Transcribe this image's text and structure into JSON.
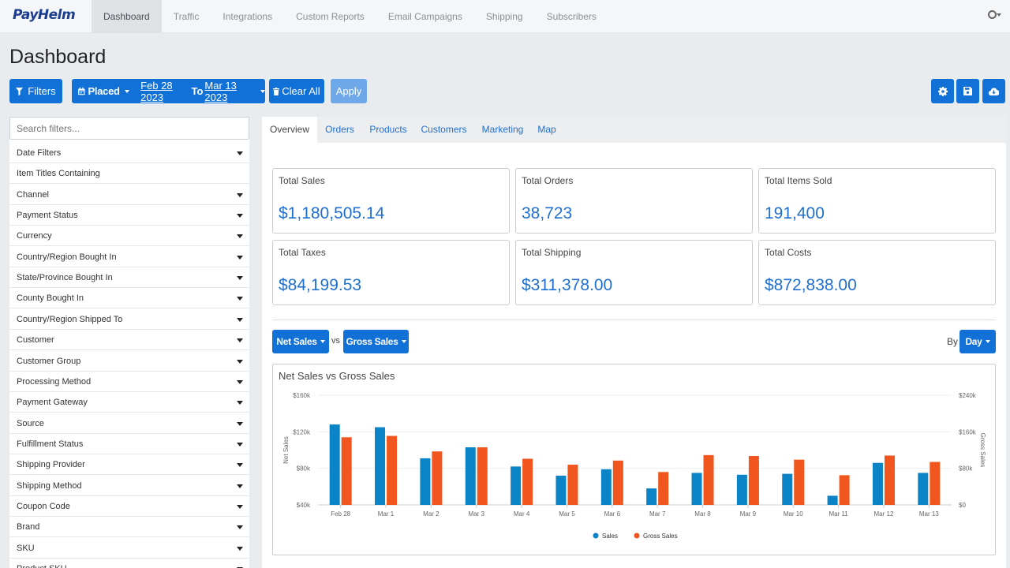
{
  "app": {
    "logo": "PayHelm"
  },
  "nav": {
    "items": [
      "Dashboard",
      "Traffic",
      "Integrations",
      "Custom Reports",
      "Email Campaigns",
      "Shipping",
      "Subscribers"
    ],
    "active": "Dashboard"
  },
  "page": {
    "title": "Dashboard"
  },
  "toolbar": {
    "filters_label": "Filters",
    "placed_label": "Placed",
    "date_from": "Feb 28 2023",
    "to_label": "To",
    "date_to": "Mar 13 2023",
    "clear_label": "Clear All",
    "apply_label": "Apply"
  },
  "sidebar": {
    "search_placeholder": "Search filters...",
    "filters": [
      {
        "label": "Date Filters",
        "dropdown": true
      },
      {
        "label": "Item Titles Containing",
        "dropdown": false
      },
      {
        "label": "Channel",
        "dropdown": true
      },
      {
        "label": "Payment Status",
        "dropdown": true
      },
      {
        "label": "Currency",
        "dropdown": true
      },
      {
        "label": "Country/Region Bought In",
        "dropdown": true
      },
      {
        "label": "State/Province Bought In",
        "dropdown": true
      },
      {
        "label": "County Bought In",
        "dropdown": true
      },
      {
        "label": "Country/Region Shipped To",
        "dropdown": true
      },
      {
        "label": "Customer",
        "dropdown": true
      },
      {
        "label": "Customer Group",
        "dropdown": true
      },
      {
        "label": "Processing Method",
        "dropdown": true
      },
      {
        "label": "Payment Gateway",
        "dropdown": true
      },
      {
        "label": "Source",
        "dropdown": true
      },
      {
        "label": "Fulfillment Status",
        "dropdown": true
      },
      {
        "label": "Shipping Provider",
        "dropdown": true
      },
      {
        "label": "Shipping Method",
        "dropdown": true
      },
      {
        "label": "Coupon Code",
        "dropdown": true
      },
      {
        "label": "Brand",
        "dropdown": true
      },
      {
        "label": "SKU",
        "dropdown": true
      },
      {
        "label": "Product SKU",
        "dropdown": true
      }
    ]
  },
  "main": {
    "tabs": [
      "Overview",
      "Orders",
      "Products",
      "Customers",
      "Marketing",
      "Map"
    ],
    "active_tab": "Overview",
    "kpis": [
      {
        "label": "Total Sales",
        "value": "$1,180,505.14"
      },
      {
        "label": "Total Orders",
        "value": "38,723"
      },
      {
        "label": "Total Items Sold",
        "value": "191,400"
      },
      {
        "label": "Total Taxes",
        "value": "$84,199.53"
      },
      {
        "label": "Total Shipping",
        "value": "$311,378.00"
      },
      {
        "label": "Total Costs",
        "value": "$872,838.00"
      }
    ],
    "metric_a": "Net Sales",
    "vs_label": "vs",
    "metric_b": "Gross Sales",
    "by_label": "By",
    "period": "Day"
  },
  "colors": {
    "primary": "#1271d6",
    "sales": "#0a84c6",
    "gross": "#f0561d"
  },
  "chart_data": {
    "type": "bar",
    "title": "Net Sales vs Gross Sales",
    "categories": [
      "Feb 28",
      "Mar 1",
      "Mar 2",
      "Mar 3",
      "Mar 4",
      "Mar 5",
      "Mar 6",
      "Mar 7",
      "Mar 8",
      "Mar 9",
      "Mar 10",
      "Mar 11",
      "Mar 12",
      "Mar 13"
    ],
    "series": [
      {
        "name": "Sales",
        "axis": "left",
        "values": [
          128,
          125,
          91,
          103,
          82,
          72,
          79,
          58,
          75,
          73,
          74,
          50,
          86,
          75
        ]
      },
      {
        "name": "Gross Sales",
        "axis": "right",
        "values": [
          148,
          151,
          117,
          126,
          101,
          88,
          97,
          72,
          109,
          107,
          99,
          65,
          108,
          94
        ]
      }
    ],
    "left_axis": {
      "label": "Net Sales",
      "ylim": [
        40,
        160
      ],
      "ticks": [
        "$40k",
        "$80k",
        "$120k",
        "$160k"
      ]
    },
    "right_axis": {
      "label": "Gross Sales",
      "ylim": [
        0,
        240
      ],
      "ticks": [
        "$0",
        "$80k",
        "$160k",
        "$240k"
      ]
    },
    "legend": "bottom-center",
    "grid": true
  }
}
